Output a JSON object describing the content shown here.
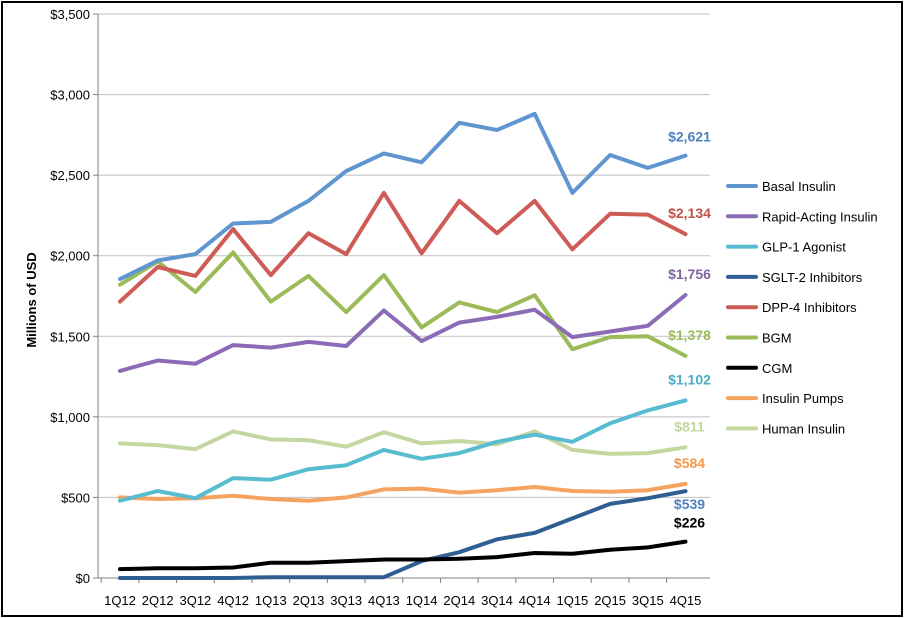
{
  "chart_data": {
    "type": "line",
    "ylabel": "Millions of USD",
    "ylim": [
      0,
      3500
    ],
    "yticks": [
      "$0",
      "$500",
      "$1,000",
      "$1,500",
      "$2,000",
      "$2,500",
      "$3,000",
      "$3,500"
    ],
    "ytick_values": [
      0,
      500,
      1000,
      1500,
      2000,
      2500,
      3000,
      3500
    ],
    "categories": [
      "1Q12",
      "2Q12",
      "3Q12",
      "4Q12",
      "1Q13",
      "2Q13",
      "3Q13",
      "4Q13",
      "1Q14",
      "2Q14",
      "3Q14",
      "4Q14",
      "1Q15",
      "2Q15",
      "3Q15",
      "4Q15"
    ],
    "grid": "horizontal",
    "legend_position": "right",
    "series": [
      {
        "name": "Basal Insulin",
        "color": "#6096D0",
        "end_label": "$2,621",
        "end_label_color": "#4F81BD",
        "values": [
          1855,
          1970,
          2010,
          2200,
          2210,
          2340,
          2525,
          2635,
          2580,
          2825,
          2780,
          2880,
          2390,
          2625,
          2545,
          2621
        ]
      },
      {
        "name": "Rapid-Acting Insulin",
        "color": "#8B6BB5",
        "end_label": "$1,756",
        "end_label_color": "#8064A2",
        "values": [
          1285,
          1350,
          1330,
          1445,
          1430,
          1465,
          1440,
          1660,
          1470,
          1585,
          1620,
          1665,
          1495,
          1530,
          1565,
          1756
        ]
      },
      {
        "name": "GLP-1 Agonist",
        "color": "#58BCD0",
        "end_label": "$1,102",
        "end_label_color": "#4BACC6",
        "values": [
          480,
          540,
          495,
          620,
          610,
          675,
          700,
          795,
          740,
          775,
          845,
          890,
          845,
          960,
          1040,
          1102
        ]
      },
      {
        "name": "SGLT-2 Inhibitors",
        "color": "#2F5F92",
        "end_label": "$539",
        "end_label_color": "#4F81BD",
        "values": [
          0,
          0,
          0,
          0,
          5,
          5,
          5,
          5,
          105,
          160,
          240,
          280,
          370,
          460,
          495,
          539
        ]
      },
      {
        "name": "DPP-4 Inhibitors",
        "color": "#CE5B56",
        "end_label": "$2,134",
        "end_label_color": "#C0504D",
        "values": [
          1715,
          1930,
          1875,
          2165,
          1880,
          2140,
          2010,
          2390,
          2015,
          2340,
          2140,
          2340,
          2040,
          2260,
          2255,
          2134
        ]
      },
      {
        "name": "BGM",
        "color": "#9BBB59",
        "end_label": "$1,378",
        "end_label_color": "#9BBB59",
        "values": [
          1820,
          1965,
          1775,
          2020,
          1715,
          1875,
          1650,
          1880,
          1555,
          1710,
          1650,
          1755,
          1420,
          1495,
          1500,
          1378
        ]
      },
      {
        "name": "CGM",
        "color": "#000000",
        "end_label": "$226",
        "end_label_color": "#000000",
        "values": [
          55,
          60,
          60,
          65,
          95,
          95,
          105,
          115,
          115,
          120,
          130,
          155,
          150,
          175,
          190,
          226
        ]
      },
      {
        "name": "Insulin Pumps",
        "color": "#F4A460",
        "end_label": "$584",
        "end_label_color": "#F79646",
        "values": [
          500,
          490,
          495,
          510,
          490,
          480,
          500,
          550,
          555,
          530,
          545,
          565,
          540,
          535,
          545,
          584
        ]
      },
      {
        "name": "Human Insulin",
        "color": "#C4D7A0",
        "end_label": "$811",
        "end_label_color": "#C3D69B",
        "values": [
          835,
          825,
          800,
          910,
          860,
          855,
          815,
          905,
          835,
          850,
          830,
          910,
          795,
          770,
          775,
          811
        ]
      }
    ]
  }
}
